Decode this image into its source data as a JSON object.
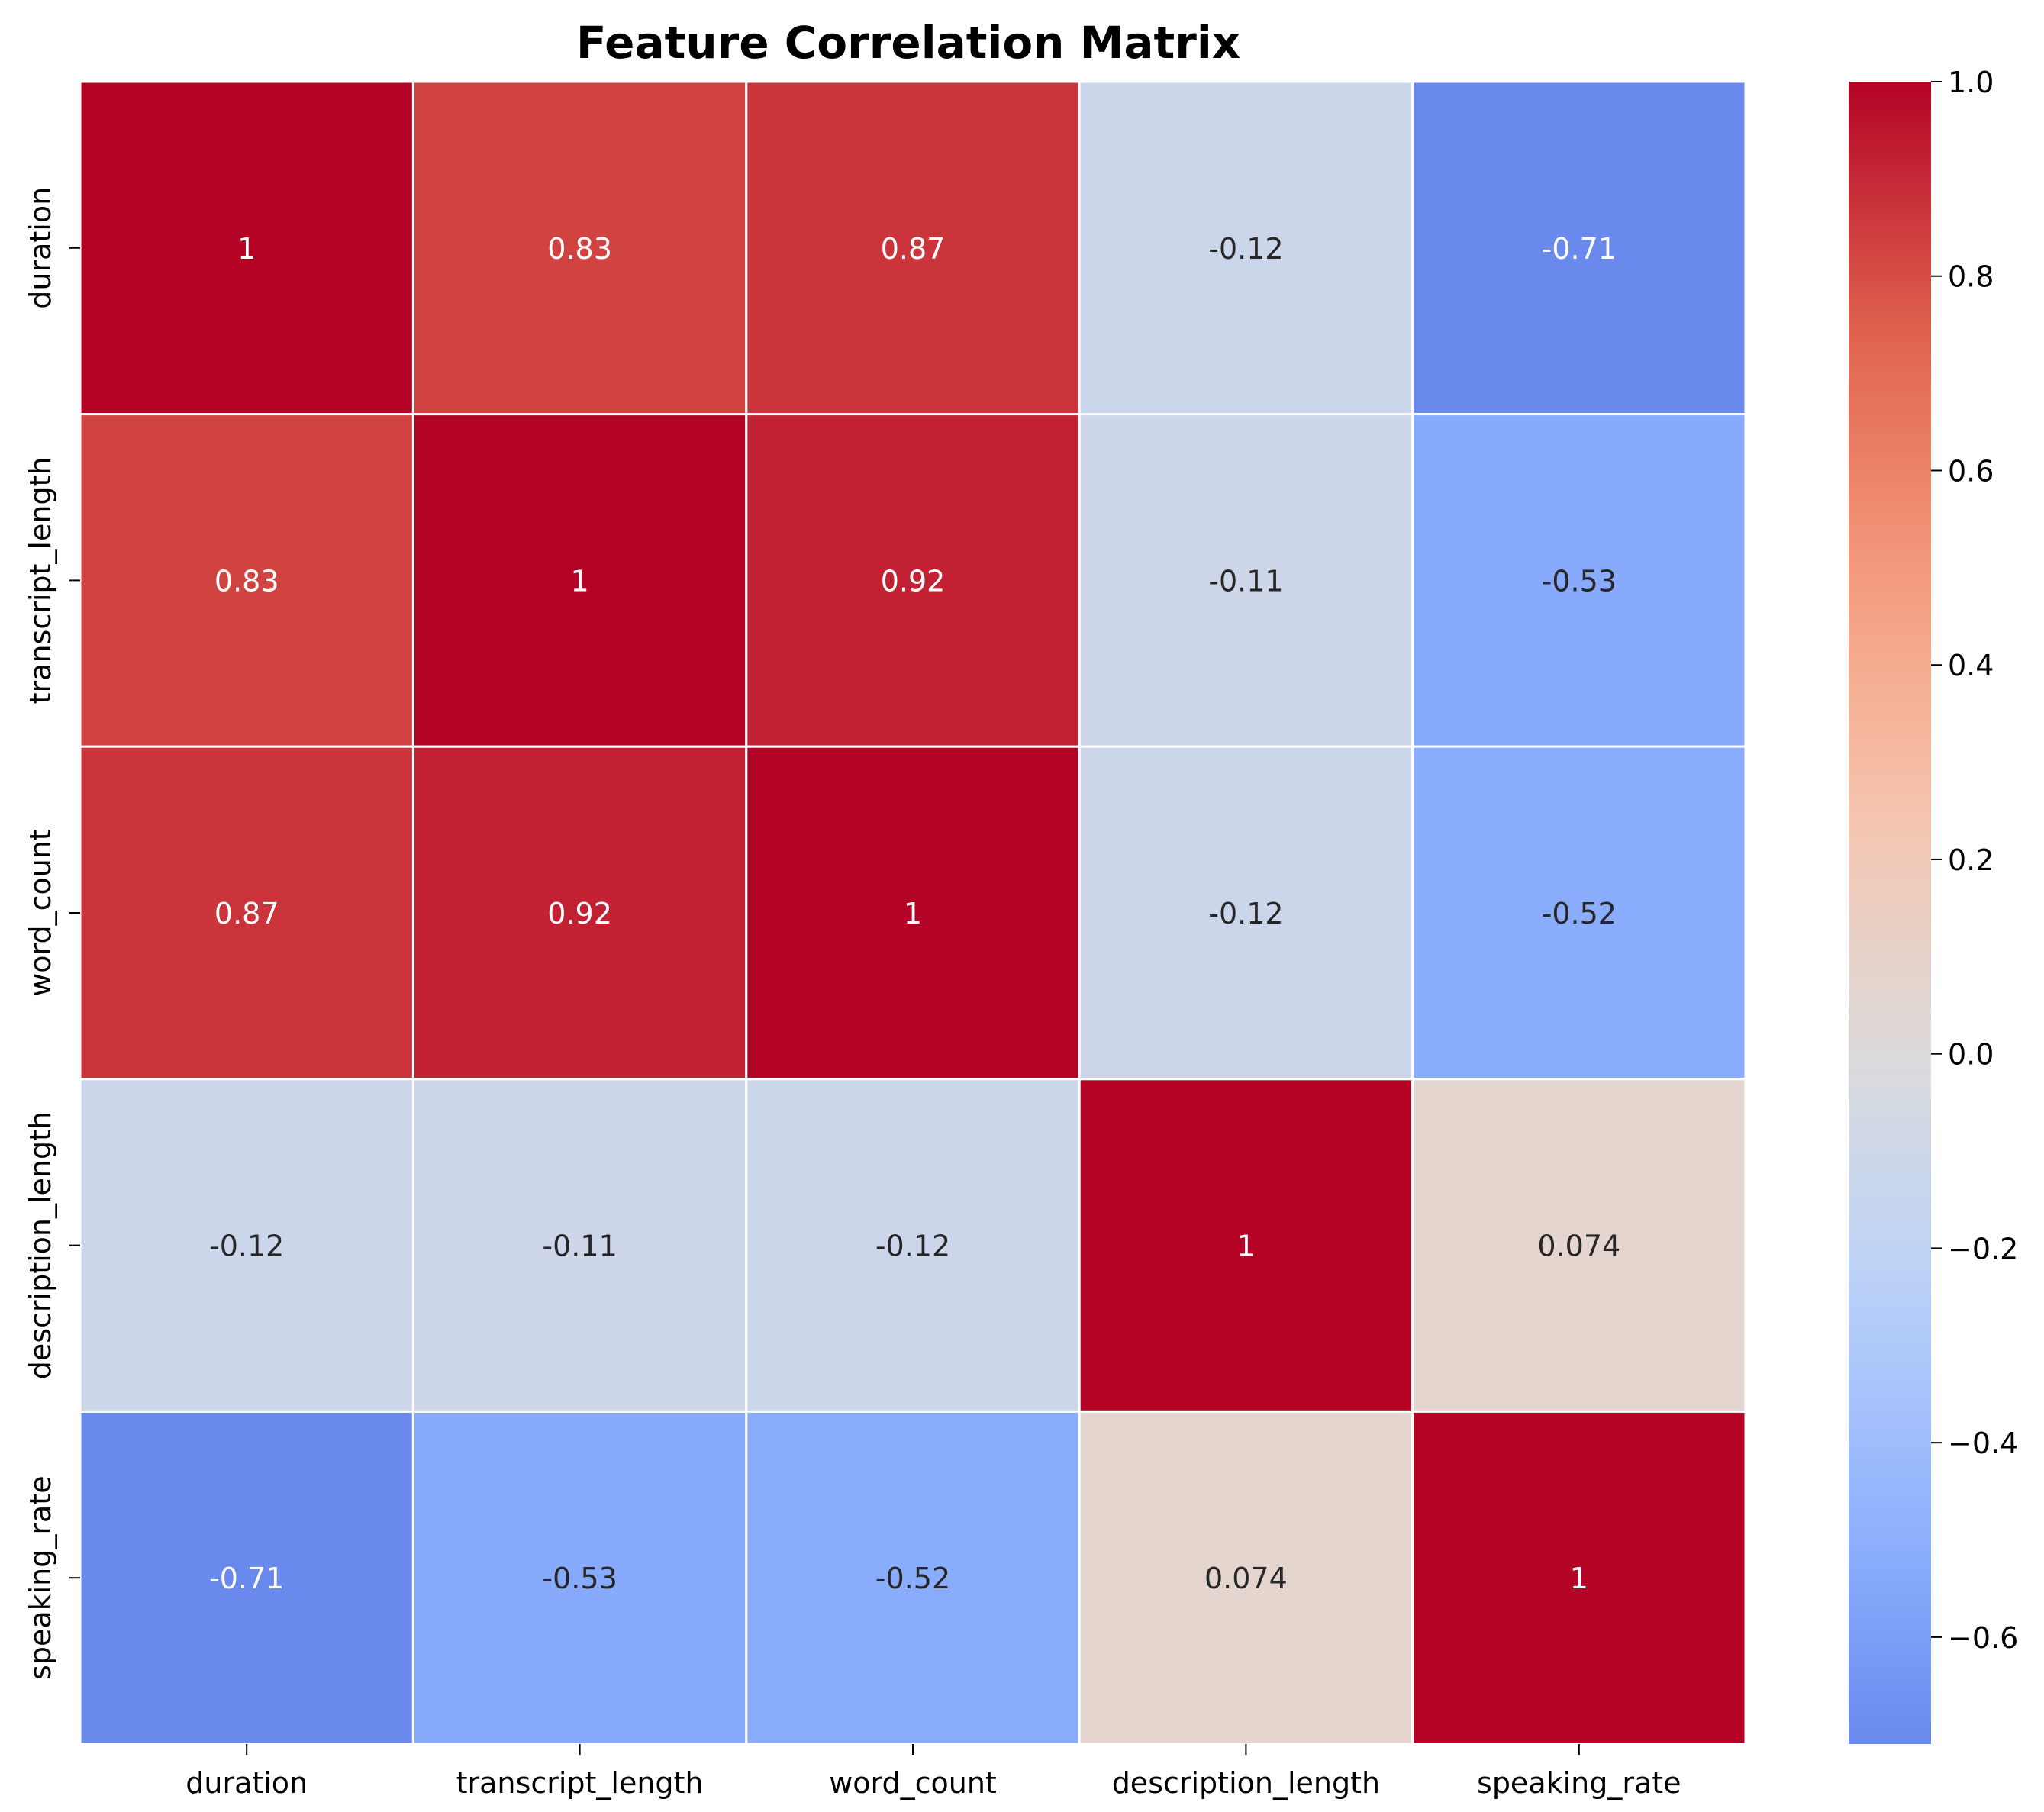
{
  "chart_data": {
    "type": "heatmap",
    "title": "Feature Correlation Matrix",
    "xlabel": "",
    "ylabel": "",
    "rows": [
      "duration",
      "transcript_length",
      "word_count",
      "description_length",
      "speaking_rate"
    ],
    "columns": [
      "duration",
      "transcript_length",
      "word_count",
      "description_length",
      "speaking_rate"
    ],
    "values": [
      [
        1,
        0.83,
        0.87,
        -0.12,
        -0.71
      ],
      [
        0.83,
        1,
        0.92,
        -0.11,
        -0.53
      ],
      [
        0.87,
        0.92,
        1,
        -0.12,
        -0.52
      ],
      [
        -0.12,
        -0.11,
        -0.12,
        1,
        0.074
      ],
      [
        -0.71,
        -0.53,
        -0.52,
        0.074,
        1
      ]
    ],
    "annotations": [
      [
        "1",
        "0.83",
        "0.87",
        "-0.12",
        "-0.71"
      ],
      [
        "0.83",
        "1",
        "0.92",
        "-0.11",
        "-0.53"
      ],
      [
        "0.87",
        "0.92",
        "1",
        "-0.12",
        "-0.52"
      ],
      [
        "-0.12",
        "-0.11",
        "-0.12",
        "1",
        "0.074"
      ],
      [
        "-0.71",
        "-0.53",
        "-0.52",
        "0.074",
        "1"
      ]
    ],
    "colormap": "coolwarm",
    "vmin": -0.71,
    "vmax": 1.0,
    "center": 0,
    "colorbar": {
      "ticks": [
        1.0,
        0.8,
        0.6,
        0.4,
        0.2,
        0.0,
        -0.2,
        -0.4,
        -0.6
      ],
      "tick_labels": [
        "1.0",
        "0.8",
        "0.6",
        "0.4",
        "0.2",
        "0.0",
        "−0.2",
        "−0.4",
        "−0.6"
      ]
    },
    "grid": true,
    "legend": "colorbar-right"
  }
}
